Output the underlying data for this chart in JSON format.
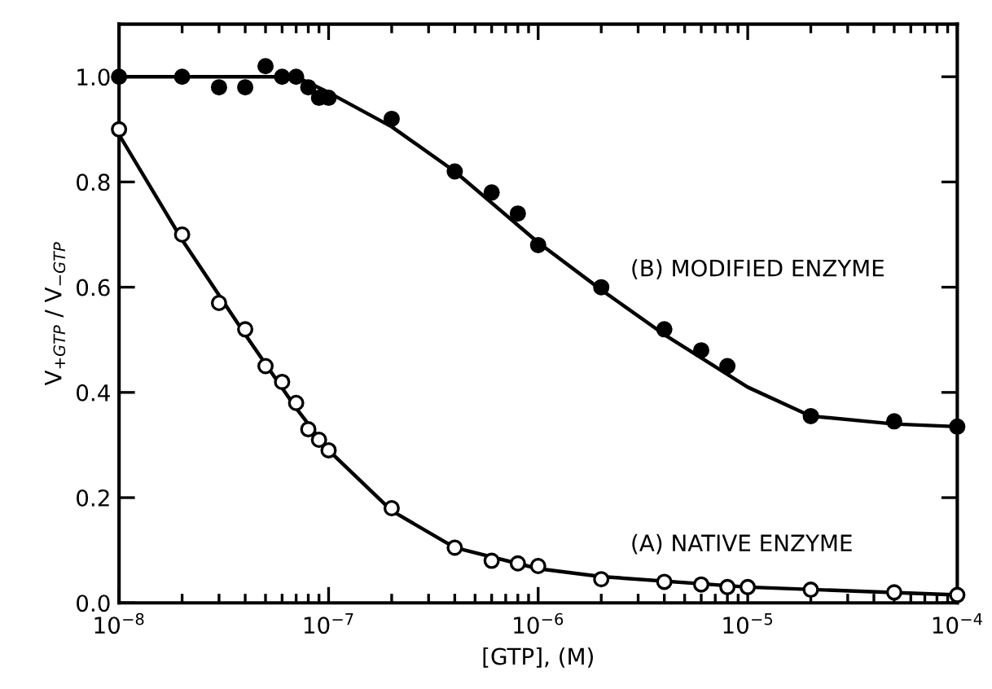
{
  "chart_data": {
    "type": "scatter",
    "xlabel": "[GTP], (M)",
    "ylabel": "V$_{+GTP}$ / V$_{−GTP}$",
    "log": "x",
    "xlim": [
      1e-08,
      0.0001
    ],
    "xticks": [
      {
        "value": 1e-08,
        "label": "10$^{−8}$"
      },
      {
        "value": 1e-07,
        "label": "10$^{−7}$"
      },
      {
        "value": 1e-06,
        "label": "10$^{−6}$"
      },
      {
        "value": 1e-05,
        "label": "10$^{−5}$"
      },
      {
        "value": 0.0001,
        "label": "10$^{−4}$"
      }
    ],
    "ylim": [
      0,
      1.1
    ],
    "yticks": [
      {
        "value": 0,
        "label": "0.0"
      },
      {
        "value": 0.2,
        "label": "0.2"
      },
      {
        "value": 0.4,
        "label": "0.4"
      },
      {
        "value": 0.6,
        "label": "0.6"
      },
      {
        "value": 0.8,
        "label": "0.8"
      },
      {
        "value": 1.0,
        "label": "1.0"
      }
    ],
    "grid": false,
    "legend": false,
    "series": [
      {
        "marker": "circle",
        "color": "#000000",
        "x": [
          1e-08,
          2e-08,
          3e-08,
          4e-08,
          5e-08,
          6e-08,
          7e-08,
          8e-08,
          9e-08,
          1e-07,
          2e-07,
          4e-07,
          6e-07,
          8e-07,
          1e-06,
          2e-06,
          4e-06,
          6e-06,
          8e-06,
          2e-05,
          5e-05,
          0.0001
        ],
        "values": [
          1.0,
          1.0,
          0.98,
          0.98,
          1.02,
          1.0,
          1.0,
          0.98,
          0.96,
          0.96,
          0.92,
          0.82,
          0.78,
          0.74,
          0.68,
          0.6,
          0.52,
          0.48,
          0.45,
          0.355,
          0.345,
          0.335
        ]
      },
      {
        "marker": "circle",
        "color": "#ffffff",
        "x": [
          1e-08,
          2e-08,
          3e-08,
          4e-08,
          5e-08,
          6e-08,
          7e-08,
          8e-08,
          9e-08,
          1e-07,
          2e-07,
          4e-07,
          6e-07,
          8e-07,
          1e-06,
          2e-06,
          4e-06,
          6e-06,
          8e-06,
          1e-05,
          2e-05,
          5e-05,
          0.0001
        ],
        "values": [
          0.9,
          0.7,
          0.57,
          0.52,
          0.45,
          0.42,
          0.38,
          0.33,
          0.31,
          0.29,
          0.18,
          0.105,
          0.08,
          0.075,
          0.07,
          0.045,
          0.04,
          0.035,
          0.03,
          0.03,
          0.025,
          0.02,
          0.015
        ]
      },
      {
        "type": "line",
        "marker": "none",
        "color": "#000000",
        "x": [
          1e-08,
          7e-08,
          1e-07,
          2e-07,
          4e-07,
          1e-06,
          2e-06,
          4e-06,
          1e-05,
          2e-05,
          5e-05,
          0.0001
        ],
        "values": [
          1.0,
          1.0,
          0.97,
          0.905,
          0.82,
          0.685,
          0.595,
          0.51,
          0.41,
          0.355,
          0.34,
          0.335
        ]
      },
      {
        "type": "line",
        "marker": "none",
        "color": "#000000",
        "x": [
          1e-08,
          2e-08,
          4e-08,
          7e-08,
          1e-07,
          2e-07,
          4e-07,
          1e-06,
          2e-06,
          1e-05,
          0.0001
        ],
        "values": [
          0.89,
          0.69,
          0.51,
          0.37,
          0.29,
          0.175,
          0.105,
          0.065,
          0.05,
          0.03,
          0.015
        ]
      }
    ],
    "annotations": [
      "(B) MODIFIED ENZYME",
      "(A) NATIVE ENZYME"
    ]
  }
}
